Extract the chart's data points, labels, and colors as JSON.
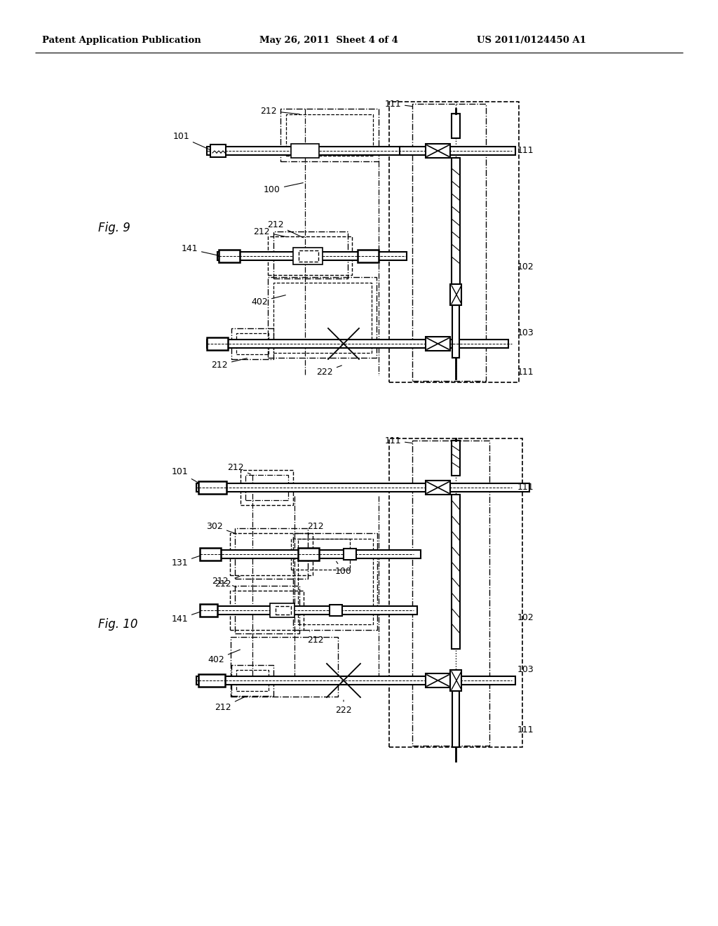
{
  "bg_color": "#ffffff",
  "header_left": "Patent Application Publication",
  "header_mid": "May 26, 2011  Sheet 4 of 4",
  "header_right": "US 2011/0124450 A1",
  "fig9_label": "Fig. 9",
  "fig10_label": "Fig. 10"
}
